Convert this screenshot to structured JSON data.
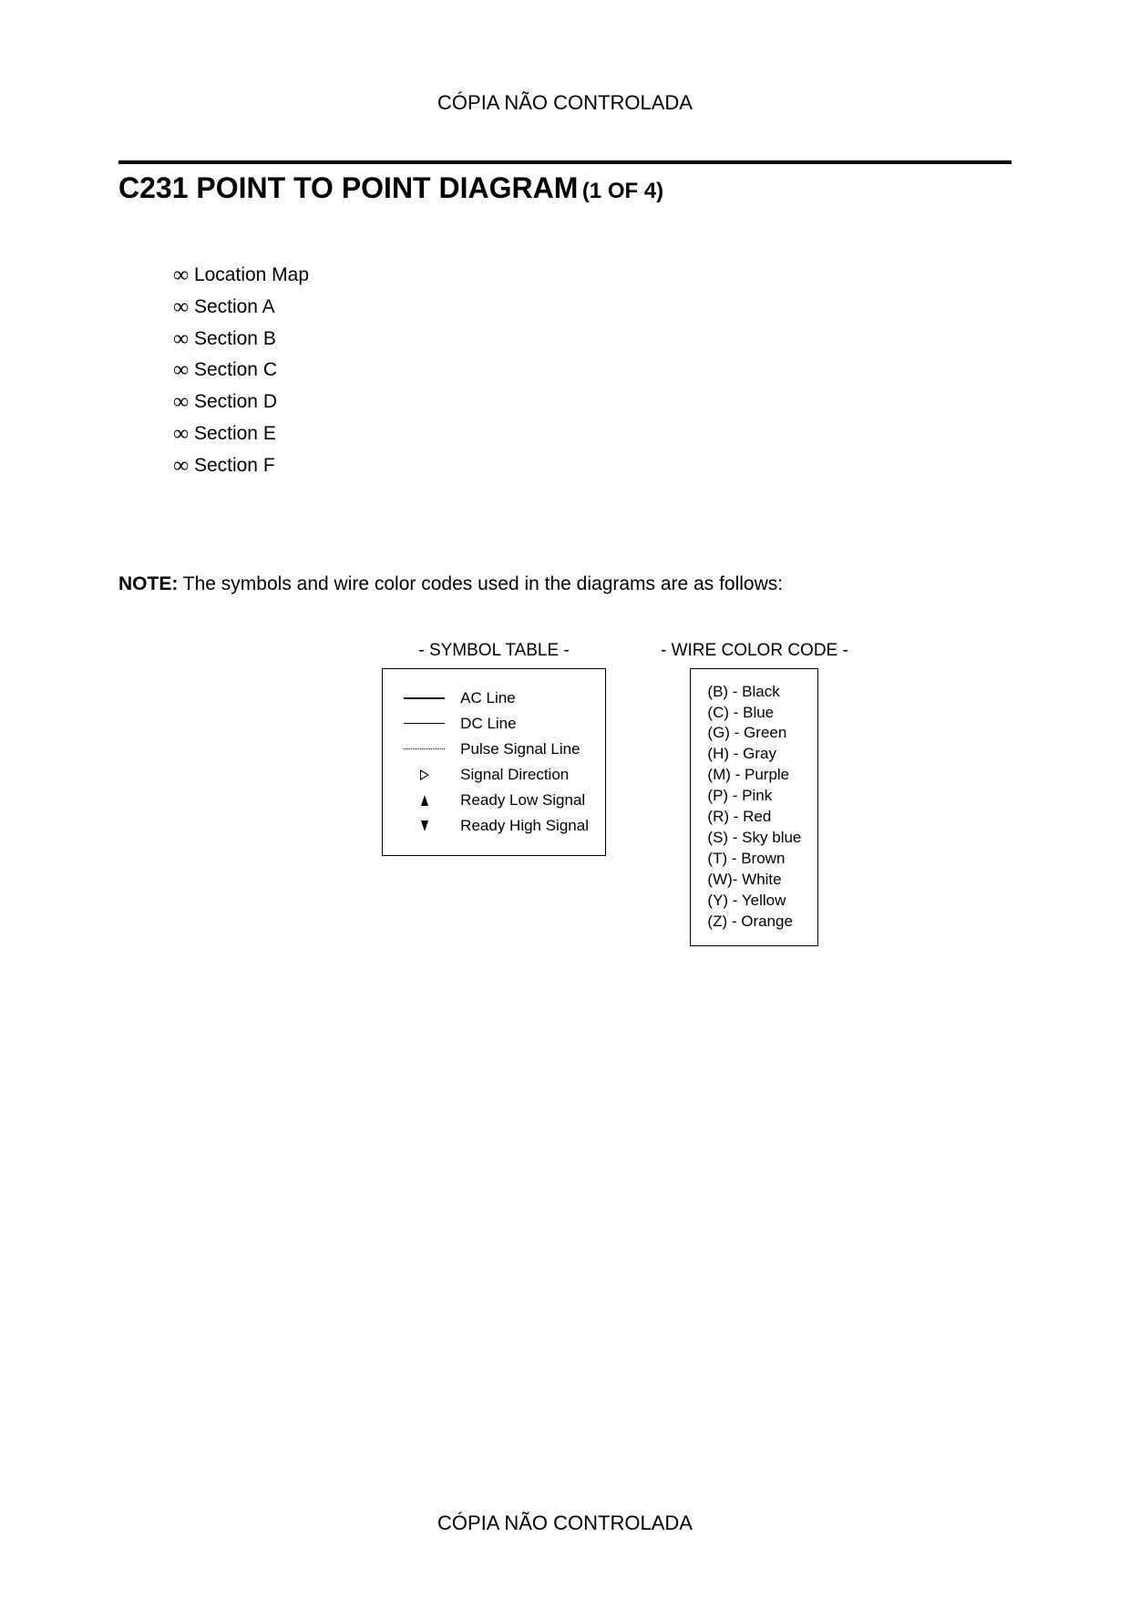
{
  "header_text": "CÓPIA NÃO CONTROLADA",
  "footer_text": "CÓPIA NÃO CONTROLADA",
  "title_main": "C231 POINT TO POINT DIAGRAM",
  "title_suffix": "(1 OF 4)",
  "sections": [
    "Location Map",
    "Section A",
    "Section B",
    "Section C",
    "Section D",
    "Section E",
    "Section F"
  ],
  "note_label": "NOTE:",
  "note_text": " The symbols and wire color codes used in the diagrams are as follows:",
  "symbol_table": {
    "title": "- SYMBOL TABLE -",
    "rows": [
      {
        "kind": "line-thick",
        "label": "AC Line"
      },
      {
        "kind": "line-thin",
        "label": "DC Line"
      },
      {
        "kind": "line-dotted",
        "label": "Pulse Signal Line"
      },
      {
        "kind": "tri-open",
        "label": "Signal Direction"
      },
      {
        "kind": "tri-up",
        "label": "Ready Low Signal"
      },
      {
        "kind": "tri-down",
        "label": "Ready High Signal"
      }
    ]
  },
  "color_table": {
    "title": "- WIRE COLOR CODE -",
    "rows": [
      "(B) - Black",
      "(C) - Blue",
      "(G) - Green",
      "(H) - Gray",
      "(M) - Purple",
      "(P) - Pink",
      "(R) - Red",
      "(S) - Sky blue",
      "(T) - Brown",
      "(W)- White",
      "(Y) - Yellow",
      "(Z) - Orange"
    ]
  }
}
